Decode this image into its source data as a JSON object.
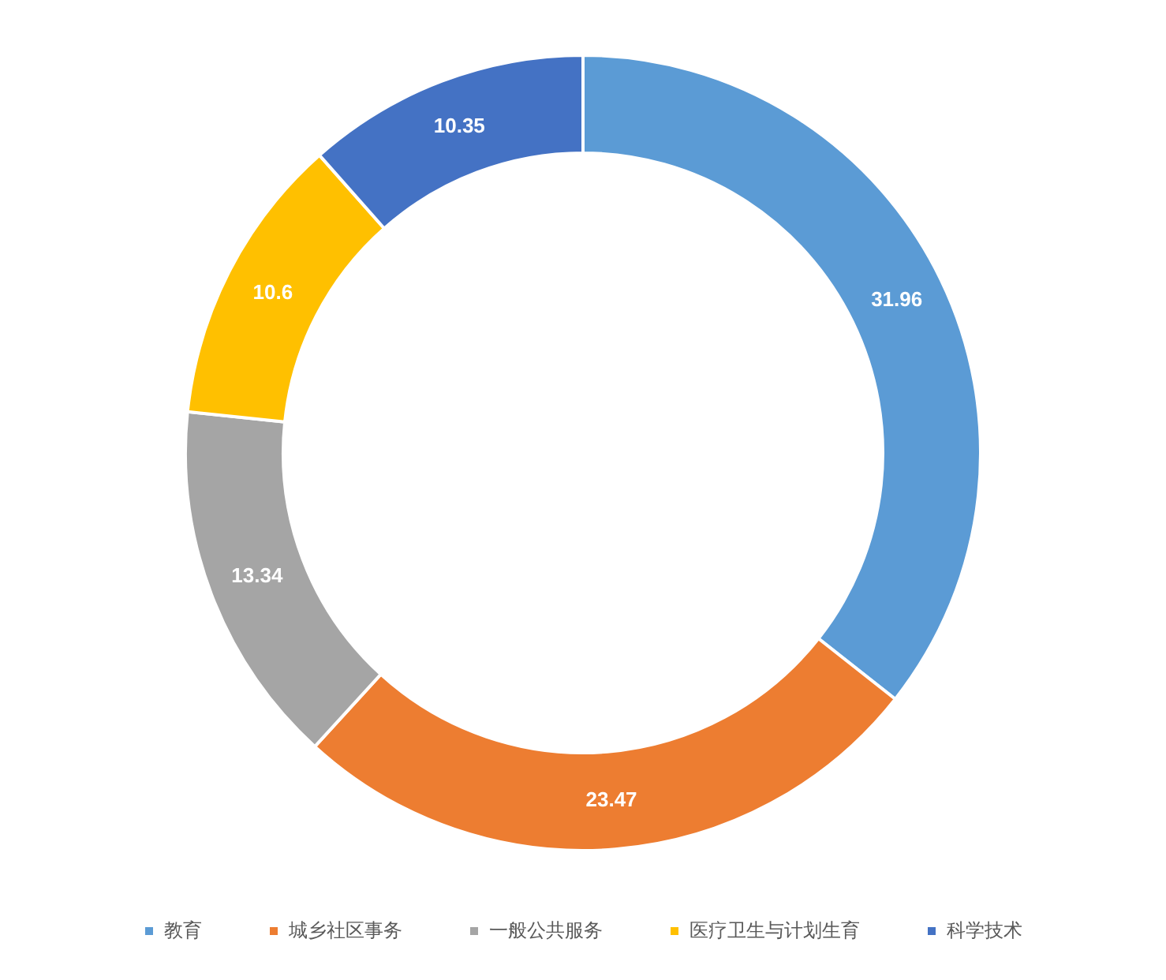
{
  "chart_data": {
    "type": "donut",
    "categories": [
      "教育",
      "城乡社区事务",
      "一般公共服务",
      "医疗卫生与计划生育",
      "科学技术"
    ],
    "values": [
      31.96,
      23.47,
      13.34,
      10.6,
      10.35
    ],
    "colors": [
      "#5b9bd5",
      "#ed7d31",
      "#a5a5a5",
      "#ffc000",
      "#4472c4"
    ],
    "data_labels": true,
    "legend": "bottom"
  }
}
